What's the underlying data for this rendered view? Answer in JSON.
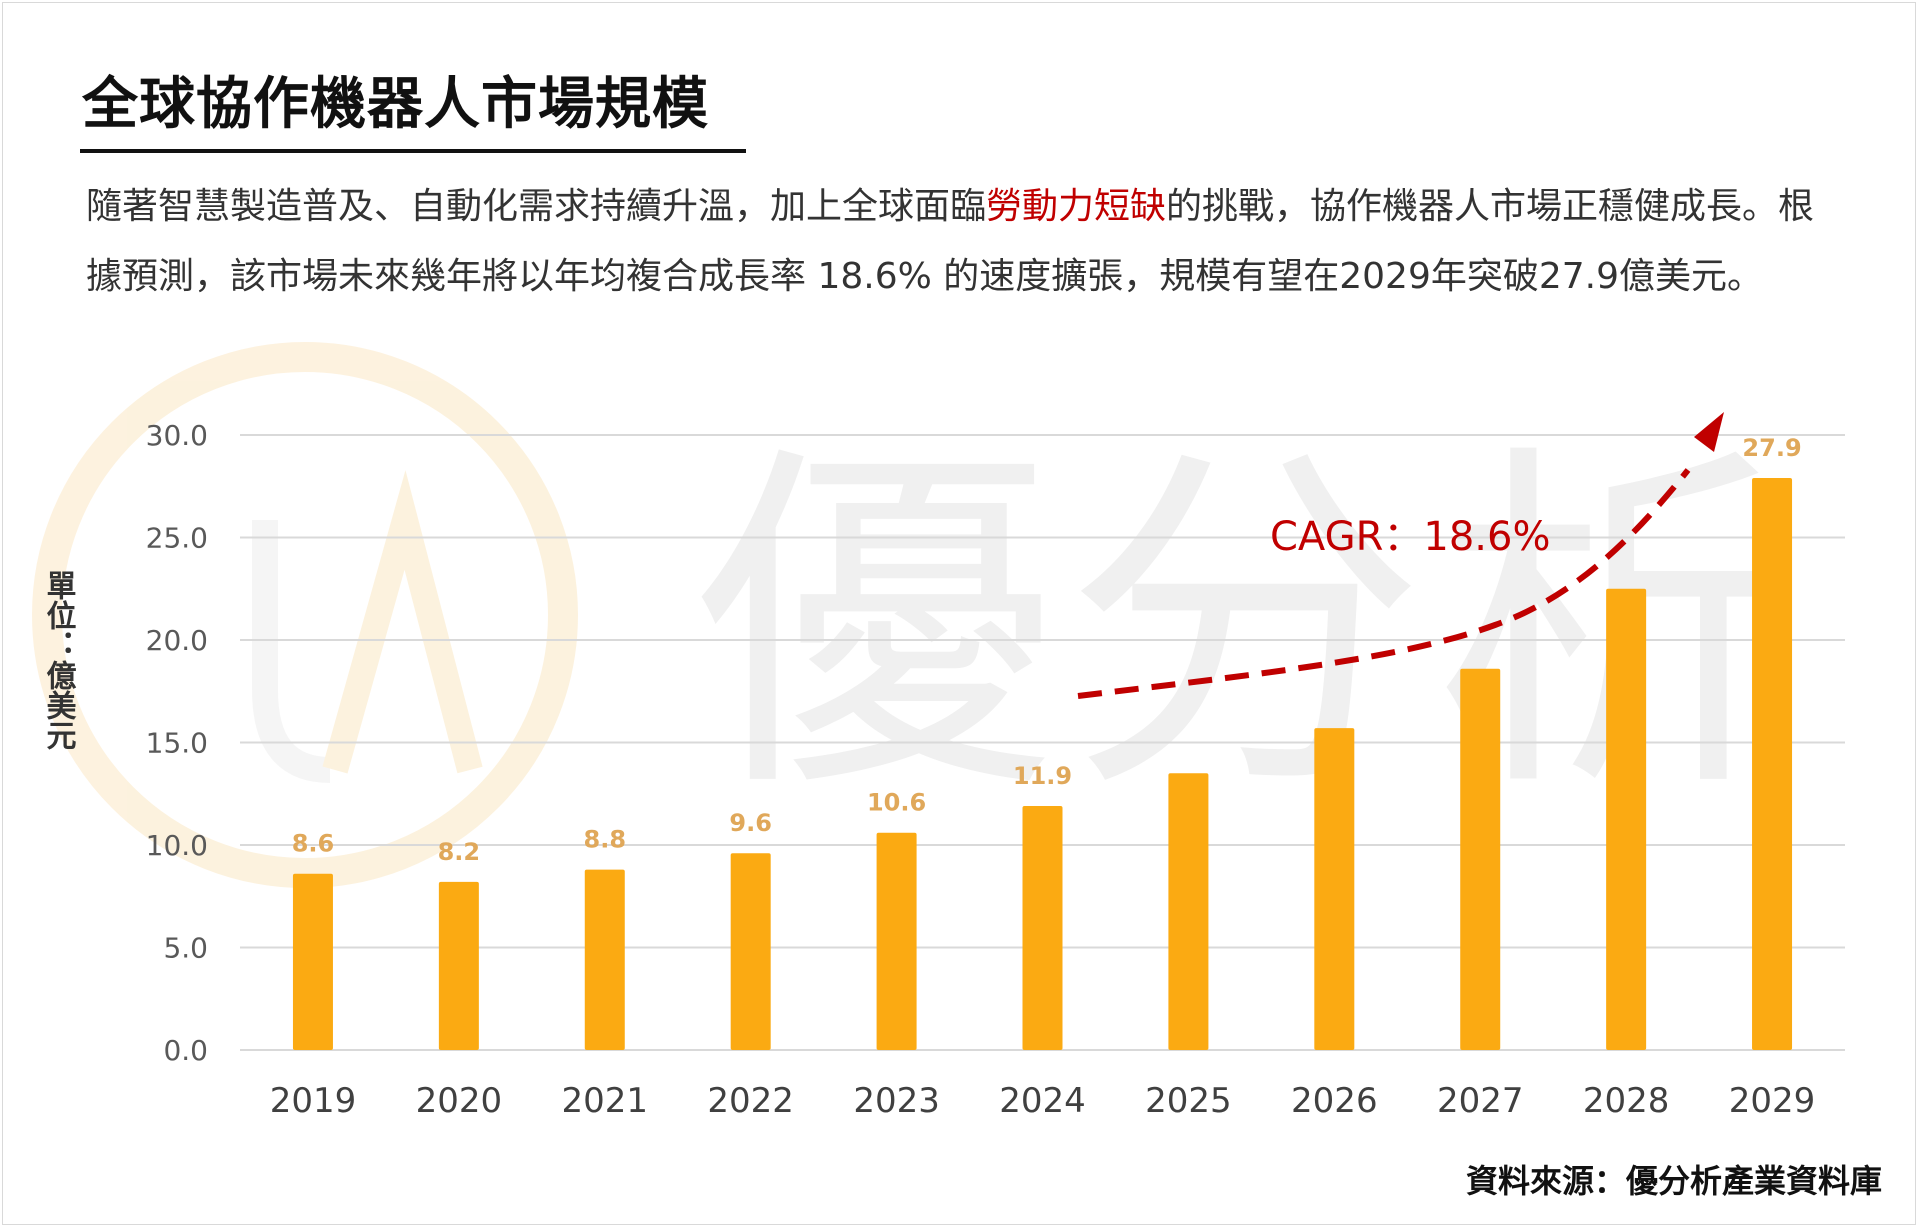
{
  "title": "全球協作機器人市場規模",
  "description": {
    "before": "隨著智慧製造普及、自動化需求持續升溫，加上全球面臨",
    "highlight": "勞動力短缺",
    "after": "的挑戰，協作機器人市場正穩健成長。根據預測，該市場未來幾年將以年均複合成長率 18.6% 的速度擴張，規模有望在2029年突破27.9億美元。"
  },
  "watermark": "優分析",
  "annotation": "CAGR：18.6%",
  "source": "資料來源：優分析產業資料庫",
  "colors": {
    "bar": "#FBAA12",
    "data_label": "#E0A85A",
    "highlight": "#C00000",
    "arrow": "#C00000",
    "grid": "#D9D9D9",
    "watermark": "#F0F0F0"
  },
  "chart_data": {
    "type": "bar",
    "categories": [
      "2019",
      "2020",
      "2021",
      "2022",
      "2023",
      "2024",
      "2025",
      "2026",
      "2027",
      "2028",
      "2029"
    ],
    "values": [
      8.6,
      8.2,
      8.8,
      9.6,
      10.6,
      11.9,
      13.5,
      15.7,
      18.6,
      22.5,
      27.9
    ],
    "data_labels": [
      "8.6",
      "8.2",
      "8.8",
      "9.6",
      "10.6",
      "11.9",
      "",
      "",
      "",
      "",
      "27.9"
    ],
    "ylabel": "單位：億美元",
    "ylim": [
      0,
      30
    ],
    "yticks": [
      "0.0",
      "5.0",
      "10.0",
      "15.0",
      "20.0",
      "25.0",
      "30.0"
    ],
    "grid": true,
    "legend": "none"
  }
}
